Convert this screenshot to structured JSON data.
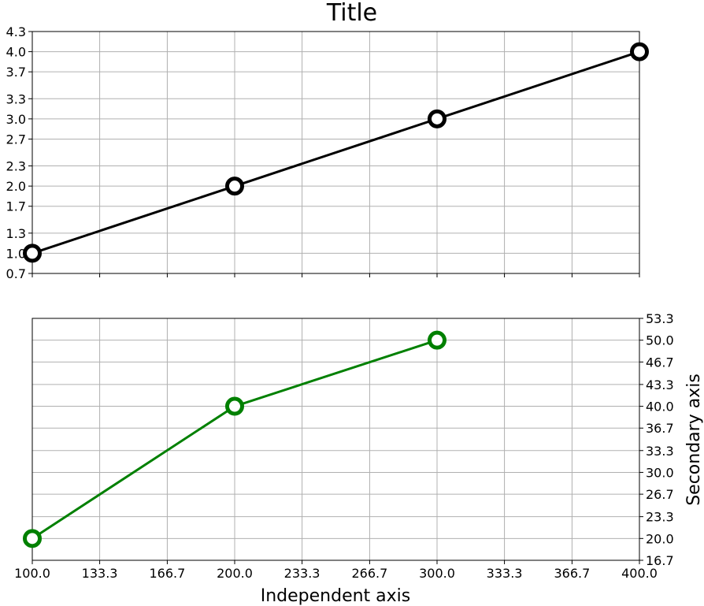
{
  "chart_data": [
    {
      "type": "line",
      "title": "Title",
      "xlabel": "",
      "ylabel": "",
      "xlim": [
        100,
        400
      ],
      "ylim": [
        0.7,
        4.3
      ],
      "x_ticks": [
        "100.0",
        "133.3",
        "166.7",
        "200.0",
        "233.3",
        "266.7",
        "300.0",
        "333.3",
        "366.7",
        "400.0"
      ],
      "y_ticks": [
        "0.7",
        "1.0",
        "1.3",
        "1.7",
        "2.0",
        "2.3",
        "2.7",
        "3.0",
        "3.3",
        "3.7",
        "4.0",
        "4.3"
      ],
      "x_tick_labels_visible": false,
      "y_axis_side": "left",
      "grid": true,
      "series": [
        {
          "x": [
            100,
            200,
            300,
            400
          ],
          "y": [
            1,
            2,
            3,
            4
          ],
          "color": "#000000",
          "marker": "open-circle"
        }
      ]
    },
    {
      "type": "line",
      "title": "",
      "xlabel": "Independent axis",
      "ylabel": "Secondary axis",
      "xlim": [
        100,
        400
      ],
      "ylim": [
        16.7,
        53.3
      ],
      "x_ticks": [
        "100.0",
        "133.3",
        "166.7",
        "200.0",
        "233.3",
        "266.7",
        "300.0",
        "333.3",
        "366.7",
        "400.0"
      ],
      "y_ticks": [
        "16.7",
        "20.0",
        "23.3",
        "26.7",
        "30.0",
        "33.3",
        "36.7",
        "40.0",
        "43.3",
        "46.7",
        "50.0",
        "53.3"
      ],
      "x_tick_labels_visible": true,
      "y_axis_side": "right",
      "grid": true,
      "series": [
        {
          "x": [
            100,
            200,
            300
          ],
          "y": [
            20,
            40,
            50
          ],
          "color": "#008000",
          "marker": "open-circle"
        }
      ]
    }
  ]
}
